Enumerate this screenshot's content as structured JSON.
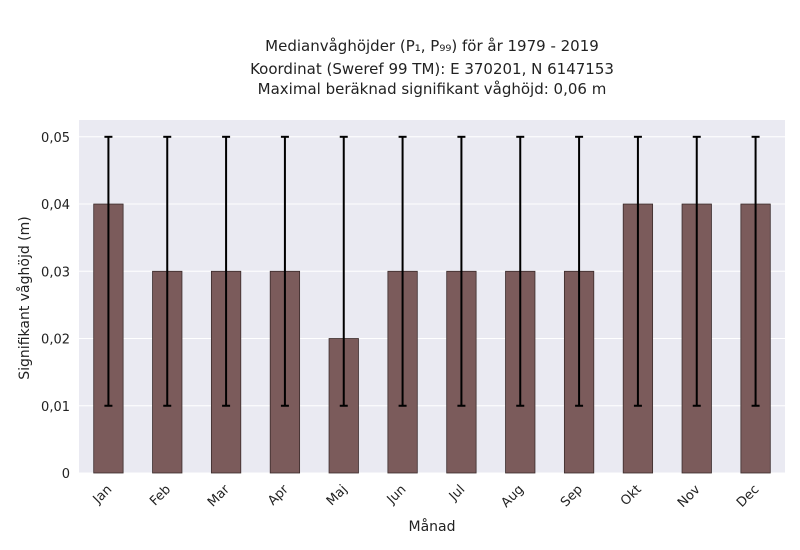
{
  "chart_data": {
    "type": "bar",
    "title_lines": [
      "Medianvåghöjder (P₁, P₉₉) för år 1979 - 2019",
      "Koordinat (Sweref 99 TM): E 370201, N 6147153",
      "Maximal beräknad signifikant våghöjd: 0,06 m"
    ],
    "xlabel": "Månad",
    "ylabel": "Signifikant våghöjd (m)",
    "categories": [
      "Jan",
      "Feb",
      "Mar",
      "Apr",
      "Maj",
      "Jun",
      "Jul",
      "Aug",
      "Sep",
      "Okt",
      "Nov",
      "Dec"
    ],
    "values": [
      0.04,
      0.03,
      0.03,
      0.03,
      0.02,
      0.03,
      0.03,
      0.03,
      0.03,
      0.04,
      0.04,
      0.04
    ],
    "error_low": [
      0.01,
      0.01,
      0.01,
      0.01,
      0.01,
      0.01,
      0.01,
      0.01,
      0.01,
      0.01,
      0.01,
      0.01
    ],
    "error_high": [
      0.05,
      0.05,
      0.05,
      0.05,
      0.05,
      0.05,
      0.05,
      0.05,
      0.05,
      0.05,
      0.05,
      0.05
    ],
    "ylim": [
      0,
      0.0525
    ],
    "yticks": [
      0,
      0.01,
      0.02,
      0.03,
      0.04,
      0.05
    ],
    "ytick_labels": [
      "0",
      "0,01",
      "0,02",
      "0,03",
      "0,04",
      "0,05"
    ],
    "grid": true,
    "colors": {
      "bar": "#7b5b5b",
      "bar_edge": "#3a2a2a",
      "error": "#000000",
      "plot_bg": "#eaeaf2",
      "grid": "#ffffff"
    }
  }
}
